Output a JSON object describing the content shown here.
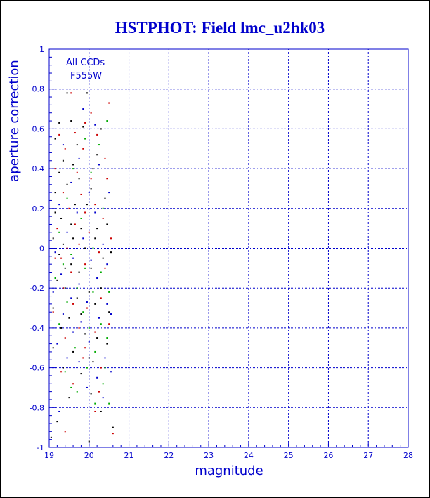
{
  "colors": {
    "axis": "#0000cc",
    "grid": "#0000cc",
    "title": "#0000cc",
    "background": "#ffffff",
    "series_colors": [
      "#000000",
      "#cc0000",
      "#0000cc",
      "#00aa00"
    ]
  },
  "chart_data": {
    "type": "scatter",
    "title": "HSTPHOT: Field lmc_u2hk03",
    "xlabel": "magnitude",
    "ylabel": "aperture correction",
    "xlim": [
      19,
      28
    ],
    "ylim": [
      -1,
      1
    ],
    "x_ticks": [
      "19",
      "20",
      "21",
      "22",
      "23",
      "24",
      "25",
      "26",
      "27",
      "28"
    ],
    "y_ticks": [
      "-1",
      "-0.8",
      "-0.6",
      "-0.4",
      "-0.2",
      "0",
      "0.2",
      "0.4",
      "0.6",
      "0.8",
      "1"
    ],
    "grid": true,
    "legend_text": [
      "All CCDs",
      "F555W"
    ],
    "legend_placement": "top-left",
    "series": [
      {
        "color": "#000000",
        "points": [
          [
            19.45,
            0.78
          ],
          [
            19.95,
            0.78
          ],
          [
            19.25,
            0.63
          ],
          [
            19.55,
            0.64
          ],
          [
            19.85,
            0.61
          ],
          [
            20.3,
            0.6
          ],
          [
            19.15,
            0.55
          ],
          [
            19.35,
            0.44
          ],
          [
            19.6,
            0.42
          ],
          [
            19.25,
            0.38
          ],
          [
            20.1,
            0.4
          ],
          [
            19.75,
            0.35
          ],
          [
            19.45,
            0.32
          ],
          [
            20.05,
            0.3
          ],
          [
            19.15,
            0.28
          ],
          [
            19.65,
            0.22
          ],
          [
            19.95,
            0.22
          ],
          [
            20.4,
            0.25
          ],
          [
            19.3,
            0.15
          ],
          [
            19.55,
            0.12
          ],
          [
            19.8,
            0.1
          ],
          [
            20.2,
            0.1
          ],
          [
            19.1,
            0.05
          ],
          [
            19.35,
            0.02
          ],
          [
            19.6,
            0.05
          ],
          [
            19.9,
            0.0
          ],
          [
            20.15,
            0.05
          ],
          [
            19.25,
            -0.03
          ],
          [
            19.55,
            -0.08
          ],
          [
            19.75,
            -0.12
          ],
          [
            20.05,
            -0.1
          ],
          [
            20.35,
            -0.05
          ],
          [
            19.2,
            -0.16
          ],
          [
            19.4,
            -0.2
          ],
          [
            19.7,
            -0.25
          ],
          [
            20.0,
            -0.22
          ],
          [
            20.3,
            -0.2
          ],
          [
            19.1,
            -0.3
          ],
          [
            19.5,
            -0.35
          ],
          [
            19.8,
            -0.33
          ],
          [
            20.15,
            -0.28
          ],
          [
            20.5,
            -0.32
          ],
          [
            19.3,
            -0.4
          ],
          [
            19.9,
            -0.43
          ],
          [
            20.2,
            -0.45
          ],
          [
            19.1,
            -0.5
          ],
          [
            19.6,
            -0.52
          ],
          [
            20.0,
            -0.55
          ],
          [
            20.45,
            -0.48
          ],
          [
            19.35,
            -0.6
          ],
          [
            19.8,
            -0.63
          ],
          [
            20.1,
            -0.57
          ],
          [
            19.5,
            -0.75
          ],
          [
            20.05,
            -0.73
          ],
          [
            20.3,
            -0.82
          ],
          [
            19.2,
            -0.87
          ],
          [
            20.0,
            -0.97
          ],
          [
            20.6,
            -0.9
          ],
          [
            19.05,
            -0.95
          ],
          [
            19.7,
            0.52
          ],
          [
            20.2,
            0.47
          ],
          [
            19.15,
            0.18
          ],
          [
            20.45,
            0.12
          ],
          [
            19.4,
            -0.1
          ],
          [
            20.55,
            -0.02
          ]
        ]
      },
      {
        "color": "#cc0000",
        "points": [
          [
            19.55,
            0.78
          ],
          [
            20.05,
            0.68
          ],
          [
            20.5,
            0.73
          ],
          [
            19.25,
            0.57
          ],
          [
            19.65,
            0.58
          ],
          [
            20.2,
            0.57
          ],
          [
            19.4,
            0.5
          ],
          [
            19.85,
            0.5
          ],
          [
            20.4,
            0.45
          ],
          [
            19.15,
            0.4
          ],
          [
            19.7,
            0.38
          ],
          [
            20.05,
            0.35
          ],
          [
            20.45,
            0.35
          ],
          [
            19.35,
            0.28
          ],
          [
            19.8,
            0.27
          ],
          [
            20.15,
            0.22
          ],
          [
            19.5,
            0.2
          ],
          [
            19.9,
            0.18
          ],
          [
            20.35,
            0.15
          ],
          [
            19.2,
            0.1
          ],
          [
            19.65,
            0.12
          ],
          [
            20.0,
            0.08
          ],
          [
            19.45,
            0.0
          ],
          [
            19.75,
            0.02
          ],
          [
            20.25,
            -0.02
          ],
          [
            19.15,
            -0.05
          ],
          [
            19.55,
            -0.12
          ],
          [
            19.9,
            -0.08
          ],
          [
            20.4,
            -0.1
          ],
          [
            19.35,
            -0.2
          ],
          [
            19.6,
            -0.28
          ],
          [
            19.95,
            -0.3
          ],
          [
            20.3,
            -0.25
          ],
          [
            19.1,
            -0.32
          ],
          [
            19.75,
            -0.4
          ],
          [
            20.15,
            -0.42
          ],
          [
            20.5,
            -0.38
          ],
          [
            19.4,
            -0.45
          ],
          [
            19.9,
            -0.5
          ],
          [
            20.3,
            -0.6
          ],
          [
            19.3,
            -0.62
          ],
          [
            19.85,
            -0.55
          ],
          [
            20.25,
            -0.72
          ],
          [
            19.6,
            -0.68
          ],
          [
            20.15,
            -0.82
          ],
          [
            19.4,
            -0.92
          ],
          [
            20.6,
            -0.93
          ],
          [
            19.9,
            0.63
          ],
          [
            19.3,
            -0.05
          ],
          [
            20.55,
            0.05
          ]
        ]
      },
      {
        "color": "#0000cc",
        "points": [
          [
            19.85,
            0.7
          ],
          [
            20.15,
            0.62
          ],
          [
            19.35,
            0.52
          ],
          [
            19.75,
            0.45
          ],
          [
            20.25,
            0.42
          ],
          [
            19.55,
            0.33
          ],
          [
            20.0,
            0.28
          ],
          [
            20.5,
            0.28
          ],
          [
            19.25,
            0.22
          ],
          [
            19.7,
            0.18
          ],
          [
            20.15,
            0.18
          ],
          [
            19.45,
            0.08
          ],
          [
            19.85,
            0.05
          ],
          [
            20.35,
            0.02
          ],
          [
            19.15,
            -0.02
          ],
          [
            19.6,
            -0.05
          ],
          [
            20.05,
            -0.06
          ],
          [
            20.45,
            -0.08
          ],
          [
            19.3,
            -0.13
          ],
          [
            19.75,
            -0.18
          ],
          [
            20.2,
            -0.15
          ],
          [
            19.1,
            -0.22
          ],
          [
            19.55,
            -0.25
          ],
          [
            19.95,
            -0.27
          ],
          [
            20.45,
            -0.28
          ],
          [
            19.35,
            -0.33
          ],
          [
            19.8,
            -0.37
          ],
          [
            20.25,
            -0.35
          ],
          [
            20.55,
            -0.33
          ],
          [
            19.6,
            -0.42
          ],
          [
            20.0,
            -0.47
          ],
          [
            19.2,
            -0.48
          ],
          [
            19.75,
            -0.57
          ],
          [
            20.4,
            -0.55
          ],
          [
            19.45,
            -0.55
          ],
          [
            20.2,
            -0.65
          ],
          [
            19.95,
            -0.7
          ],
          [
            20.55,
            -0.62
          ],
          [
            19.25,
            -0.82
          ],
          [
            20.35,
            -0.75
          ]
        ]
      },
      {
        "color": "#00aa00",
        "points": [
          [
            20.45,
            0.64
          ],
          [
            19.9,
            0.55
          ],
          [
            20.25,
            0.52
          ],
          [
            19.6,
            0.4
          ],
          [
            20.05,
            0.38
          ],
          [
            19.45,
            0.25
          ],
          [
            20.35,
            0.2
          ],
          [
            19.8,
            0.15
          ],
          [
            19.25,
            0.08
          ],
          [
            20.1,
            0.0
          ],
          [
            19.55,
            -0.03
          ],
          [
            19.35,
            -0.08
          ],
          [
            19.9,
            -0.1
          ],
          [
            20.3,
            -0.12
          ],
          [
            19.15,
            -0.15
          ],
          [
            19.7,
            -0.2
          ],
          [
            20.1,
            -0.22
          ],
          [
            20.5,
            -0.22
          ],
          [
            19.45,
            -0.27
          ],
          [
            19.85,
            -0.32
          ],
          [
            20.3,
            -0.38
          ],
          [
            19.25,
            -0.38
          ],
          [
            20.0,
            -0.4
          ],
          [
            20.45,
            -0.45
          ],
          [
            19.65,
            -0.5
          ],
          [
            20.15,
            -0.52
          ],
          [
            19.95,
            -0.6
          ],
          [
            20.4,
            -0.6
          ],
          [
            19.55,
            -0.7
          ],
          [
            20.35,
            -0.68
          ],
          [
            19.7,
            -0.72
          ],
          [
            20.15,
            -0.78
          ],
          [
            19.4,
            -0.62
          ],
          [
            20.5,
            -0.78
          ]
        ]
      }
    ]
  }
}
